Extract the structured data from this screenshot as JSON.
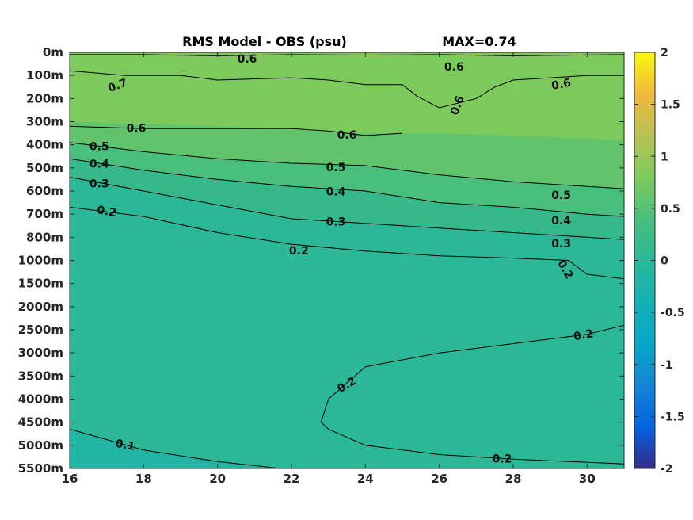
{
  "chart_data": {
    "type": "contour",
    "title": "RMS Model - OBS (psu)",
    "annotation": "MAX=0.74",
    "xlabel": "",
    "ylabel": "",
    "xlim": [
      16,
      31
    ],
    "x_ticks": [
      "16",
      "18",
      "20",
      "22",
      "24",
      "26",
      "28",
      "30"
    ],
    "y_ticks": [
      "0m",
      "100m",
      "200m",
      "300m",
      "400m",
      "500m",
      "600m",
      "700m",
      "800m",
      "1000m",
      "1500m",
      "2000m",
      "2500m",
      "3000m",
      "3500m",
      "4000m",
      "4500m",
      "5000m",
      "5500m"
    ],
    "colorbar": {
      "ticks": [
        "2",
        "1.5",
        "1",
        "0.5",
        "0",
        "-0.5",
        "-1",
        "-1.5",
        "-2"
      ],
      "range": [
        -2,
        2
      ],
      "colormap": "parula"
    },
    "contour_levels": [
      "0.1",
      "0.2",
      "0.3",
      "0.4",
      "0.5",
      "0.6",
      "0.7"
    ],
    "contours": [
      {
        "level": "0.6",
        "points": [
          [
            16,
            0.1
          ],
          [
            18,
            0.1
          ],
          [
            20,
            0.15
          ],
          [
            22,
            0.1
          ],
          [
            24,
            0.12
          ],
          [
            26,
            0.1
          ],
          [
            28,
            0.15
          ],
          [
            31,
            0.1
          ]
        ]
      },
      {
        "level": "0.6",
        "points": [
          [
            16,
            0.8
          ],
          [
            17.5,
            1.0
          ],
          [
            19,
            1.0
          ],
          [
            20,
            1.2
          ],
          [
            22,
            1.1
          ],
          [
            23,
            1.2
          ],
          [
            24,
            1.4
          ],
          [
            25,
            1.4
          ],
          [
            25.4,
            1.9
          ],
          [
            26,
            2.4
          ],
          [
            27,
            2.0
          ],
          [
            27.5,
            1.5
          ],
          [
            28,
            1.2
          ],
          [
            29,
            1.1
          ],
          [
            30,
            1.0
          ],
          [
            31,
            1.0
          ]
        ]
      },
      {
        "level": "0.6",
        "points": [
          [
            16,
            3.2
          ],
          [
            18,
            3.3
          ],
          [
            20,
            3.3
          ],
          [
            22,
            3.3
          ],
          [
            23,
            3.4
          ],
          [
            24,
            3.6
          ],
          [
            25,
            3.5
          ]
        ]
      },
      {
        "level": "0.5",
        "points": [
          [
            16,
            3.9
          ],
          [
            18,
            4.3
          ],
          [
            20,
            4.6
          ],
          [
            22,
            4.8
          ],
          [
            24,
            4.9
          ],
          [
            26,
            5.3
          ],
          [
            28,
            5.6
          ],
          [
            30,
            5.8
          ],
          [
            31,
            5.9
          ]
        ]
      },
      {
        "level": "0.4",
        "points": [
          [
            16,
            4.6
          ],
          [
            18,
            5.1
          ],
          [
            20,
            5.5
          ],
          [
            22,
            5.8
          ],
          [
            24,
            6.0
          ],
          [
            26,
            6.5
          ],
          [
            28,
            6.7
          ],
          [
            30,
            7.0
          ],
          [
            31,
            7.1
          ]
        ]
      },
      {
        "level": "0.3",
        "points": [
          [
            16,
            5.4
          ],
          [
            18,
            6.0
          ],
          [
            20,
            6.6
          ],
          [
            22,
            7.2
          ],
          [
            24,
            7.4
          ],
          [
            26,
            7.6
          ],
          [
            28,
            7.8
          ],
          [
            30,
            8.0
          ],
          [
            31,
            8.1
          ]
        ]
      },
      {
        "level": "0.2",
        "points": [
          [
            16,
            6.7
          ],
          [
            18,
            7.1
          ],
          [
            20,
            7.8
          ],
          [
            22,
            8.3
          ],
          [
            24,
            8.6
          ],
          [
            26,
            8.8
          ],
          [
            28,
            8.9
          ],
          [
            29.5,
            9.0
          ],
          [
            30,
            9.6
          ],
          [
            31,
            9.8
          ]
        ]
      },
      {
        "level": "0.2",
        "points": [
          [
            31,
            11.8
          ],
          [
            30,
            12.2
          ],
          [
            28,
            12.6
          ],
          [
            26,
            13.0
          ],
          [
            24,
            13.6
          ],
          [
            23,
            15.0
          ],
          [
            22.8,
            16.0
          ],
          [
            23,
            16.3
          ],
          [
            24,
            17.0
          ],
          [
            26,
            17.4
          ],
          [
            28,
            17.6
          ],
          [
            31,
            17.8
          ]
        ]
      },
      {
        "level": "0.1",
        "points": [
          [
            16,
            16.3
          ],
          [
            18,
            17.2
          ],
          [
            20,
            17.7
          ],
          [
            21.7,
            18.0
          ]
        ]
      }
    ],
    "field_bands": [
      {
        "value": 0.65,
        "boundary": [
          [
            16,
            3.0
          ],
          [
            20,
            3.2
          ],
          [
            24,
            3.5
          ],
          [
            26,
            3.5
          ],
          [
            28,
            3.6
          ],
          [
            31,
            3.8
          ]
        ]
      },
      {
        "value": 0.55,
        "boundary": [
          [
            16,
            3.9
          ],
          [
            18,
            4.3
          ],
          [
            20,
            4.6
          ],
          [
            22,
            4.8
          ],
          [
            24,
            4.9
          ],
          [
            26,
            5.3
          ],
          [
            28,
            5.6
          ],
          [
            30,
            5.8
          ],
          [
            31,
            5.9
          ]
        ]
      },
      {
        "value": 0.45,
        "boundary": [
          [
            16,
            4.6
          ],
          [
            18,
            5.1
          ],
          [
            20,
            5.5
          ],
          [
            22,
            5.8
          ],
          [
            24,
            6.0
          ],
          [
            26,
            6.5
          ],
          [
            28,
            6.7
          ],
          [
            30,
            7.0
          ],
          [
            31,
            7.1
          ]
        ]
      },
      {
        "value": 0.35,
        "boundary": [
          [
            16,
            5.4
          ],
          [
            18,
            6.0
          ],
          [
            20,
            6.6
          ],
          [
            22,
            7.2
          ],
          [
            24,
            7.4
          ],
          [
            26,
            7.6
          ],
          [
            28,
            7.8
          ],
          [
            30,
            8.0
          ],
          [
            31,
            8.1
          ]
        ]
      },
      {
        "value": 0.25,
        "boundary": [
          [
            16,
            6.7
          ],
          [
            18,
            7.1
          ],
          [
            20,
            7.8
          ],
          [
            22,
            8.3
          ],
          [
            24,
            8.6
          ],
          [
            26,
            8.8
          ],
          [
            28,
            8.9
          ],
          [
            29.5,
            9.0
          ],
          [
            30,
            9.6
          ],
          [
            31,
            9.8
          ]
        ]
      }
    ],
    "contour_labels": [
      {
        "text": "0.6",
        "x": 20.8,
        "y": 0.3,
        "angle": 0
      },
      {
        "text": "0.6",
        "x": 26.4,
        "y": 0.65,
        "angle": 0
      },
      {
        "text": "0.7",
        "x": 17.3,
        "y": 1.45,
        "angle": -20
      },
      {
        "text": "0.6",
        "x": 29.3,
        "y": 1.4,
        "angle": -10
      },
      {
        "text": "0.6",
        "x": 26.5,
        "y": 2.3,
        "angle": -70
      },
      {
        "text": "0.6",
        "x": 17.8,
        "y": 3.3,
        "angle": 0
      },
      {
        "text": "0.6",
        "x": 23.5,
        "y": 3.6,
        "angle": 0
      },
      {
        "text": "0.5",
        "x": 16.8,
        "y": 4.1,
        "angle": 0
      },
      {
        "text": "0.5",
        "x": 23.2,
        "y": 5.0,
        "angle": 0
      },
      {
        "text": "0.5",
        "x": 29.3,
        "y": 6.2,
        "angle": 0
      },
      {
        "text": "0.4",
        "x": 16.8,
        "y": 4.85,
        "angle": 0
      },
      {
        "text": "0.4",
        "x": 23.2,
        "y": 6.05,
        "angle": 0
      },
      {
        "text": "0.4",
        "x": 29.3,
        "y": 7.3,
        "angle": 0
      },
      {
        "text": "0.3",
        "x": 16.8,
        "y": 5.7,
        "angle": 0
      },
      {
        "text": "0.3",
        "x": 23.2,
        "y": 7.35,
        "angle": 0
      },
      {
        "text": "0.3",
        "x": 29.3,
        "y": 8.3,
        "angle": 0
      },
      {
        "text": "0.2",
        "x": 17.0,
        "y": 6.9,
        "angle": 10
      },
      {
        "text": "0.2",
        "x": 22.2,
        "y": 8.6,
        "angle": 0
      },
      {
        "text": "0.2",
        "x": 29.4,
        "y": 9.4,
        "angle": 60
      },
      {
        "text": "0.2",
        "x": 29.9,
        "y": 12.25,
        "angle": -10
      },
      {
        "text": "0.2",
        "x": 23.5,
        "y": 14.4,
        "angle": -30
      },
      {
        "text": "0.2",
        "x": 27.7,
        "y": 17.6,
        "angle": 0
      },
      {
        "text": "0.1",
        "x": 17.5,
        "y": 17.0,
        "angle": 10
      }
    ],
    "colors": {
      "c065": "#7dca5c",
      "c055": "#61c46c",
      "c045": "#49bf7d",
      "c035": "#35b98b",
      "c025": "#2ab897",
      "c015": "#21b6a3",
      "c010": "#19b3ad",
      "axis": "#262626"
    }
  }
}
